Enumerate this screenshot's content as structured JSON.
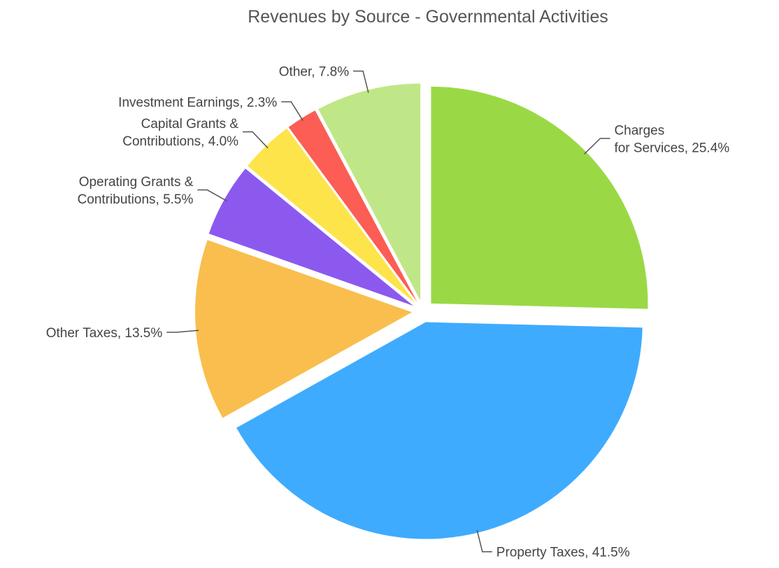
{
  "chart_data": {
    "type": "pie",
    "title": "Revenues by Source - Governmental Activities",
    "values": [
      25.4,
      41.5,
      13.5,
      5.5,
      4.0,
      2.3,
      7.8
    ],
    "value_labels": [
      [
        "Charges",
        "for Services, 25.4%"
      ],
      [
        "Property Taxes, 41.5%"
      ],
      [
        "Other Taxes, 13.5%"
      ],
      [
        "Operating Grants &",
        "Contributions, 5.5%"
      ],
      [
        "Capital Grants &",
        "Contributions, 4.0%"
      ],
      [
        "Investment Earnings, 2.3%"
      ],
      [
        "Other, 7.8%"
      ]
    ],
    "colors": [
      "#9ad945",
      "#3fabfe",
      "#f9be4d",
      "#8c59ef",
      "#fde44b",
      "#fc5d55",
      "#bfe787"
    ]
  }
}
